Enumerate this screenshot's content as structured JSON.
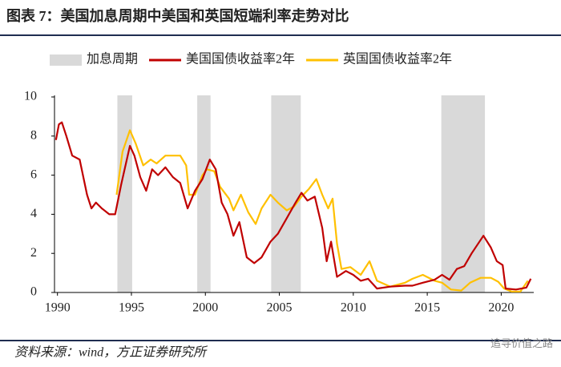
{
  "chart_data": {
    "type": "line",
    "title": "图表 7：美国加息周期中美国和英国短端利率走势对比",
    "source": "资料来源：wind，方正证券研究所",
    "watermark": "追寻价值之路",
    "shaded_name": "加息周期",
    "shaded_color": "#d9d9d9",
    "shaded": [
      [
        1994.05,
        1995.05
      ],
      [
        1999.45,
        2000.35
      ],
      [
        2004.45,
        2006.45
      ],
      [
        2015.95,
        2018.9
      ]
    ],
    "xlim": [
      1989.8,
      2022.2
    ],
    "xticks": [
      1990,
      1995,
      2000,
      2005,
      2010,
      2015,
      2020
    ],
    "ylim": [
      0,
      10
    ],
    "yticks": [
      0,
      2,
      4,
      6,
      8,
      10
    ],
    "series": [
      {
        "name": "美国国债收益率2年",
        "color": "#c00000",
        "x": [
          1989.9,
          1990.1,
          1990.3,
          1990.6,
          1991,
          1991.5,
          1992,
          1992.3,
          1992.6,
          1993,
          1993.5,
          1993.9,
          1994.3,
          1994.9,
          1995.2,
          1995.6,
          1996,
          1996.4,
          1996.8,
          1997.3,
          1997.8,
          1998.3,
          1998.8,
          1999.3,
          1999.8,
          2000.3,
          2000.7,
          2001.1,
          2001.5,
          2001.9,
          2002.3,
          2002.8,
          2003.3,
          2003.8,
          2004.4,
          2004.9,
          2005.5,
          2006.1,
          2006.5,
          2006.9,
          2007.4,
          2007.9,
          2008.2,
          2008.5,
          2008.9,
          2009.5,
          2010,
          2010.5,
          2011,
          2011.6,
          2012.5,
          2013.5,
          2014,
          2014.7,
          2015.5,
          2016,
          2016.5,
          2017,
          2017.5,
          2018,
          2018.8,
          2019.3,
          2019.7,
          2020.1,
          2020.3,
          2021,
          2021.7,
          2022
        ],
        "values": [
          7.8,
          8.6,
          8.7,
          8.0,
          7.0,
          6.8,
          5.0,
          4.3,
          4.6,
          4.3,
          4.0,
          4.0,
          5.5,
          7.5,
          7.0,
          5.9,
          5.2,
          6.3,
          6.0,
          6.4,
          5.9,
          5.6,
          4.3,
          5.2,
          5.8,
          6.8,
          6.3,
          4.6,
          4.0,
          2.9,
          3.6,
          1.8,
          1.5,
          1.8,
          2.6,
          3.0,
          3.8,
          4.6,
          5.1,
          4.7,
          4.9,
          3.3,
          1.6,
          2.6,
          0.8,
          1.1,
          0.9,
          0.6,
          0.7,
          0.2,
          0.3,
          0.35,
          0.35,
          0.5,
          0.65,
          0.9,
          0.65,
          1.2,
          1.35,
          2.0,
          2.9,
          2.3,
          1.6,
          1.4,
          0.2,
          0.15,
          0.25,
          0.7
        ]
      },
      {
        "name": "英国国债收益率2年",
        "color": "#ffc000",
        "x": [
          1994.0,
          1994.4,
          1994.9,
          1995.3,
          1995.8,
          1996.3,
          1996.7,
          1997.3,
          1997.8,
          1998.3,
          1998.7,
          1998.9,
          1999.3,
          1999.8,
          2000.1,
          2000.6,
          2001,
          2001.6,
          2001.9,
          2002.4,
          2002.9,
          2003.4,
          2003.8,
          2004.4,
          2004.9,
          2005.5,
          2006,
          2006.5,
          2007,
          2007.5,
          2007.9,
          2008.3,
          2008.6,
          2008.9,
          2009.2,
          2009.8,
          2010.5,
          2011.1,
          2011.6,
          2012.5,
          2013.5,
          2014,
          2014.7,
          2015.5,
          2016,
          2016.6,
          2017.3,
          2017.9,
          2018.6,
          2019.3,
          2019.8,
          2020.2,
          2020.7,
          2021.3,
          2021.8
        ],
        "values": [
          5.0,
          7.2,
          8.3,
          7.6,
          6.5,
          6.8,
          6.6,
          7.0,
          7.0,
          7.0,
          6.5,
          5.0,
          5.0,
          6.0,
          6.3,
          6.2,
          5.4,
          4.8,
          4.2,
          5.0,
          4.1,
          3.5,
          4.3,
          5.0,
          4.6,
          4.2,
          4.4,
          4.9,
          5.3,
          5.8,
          5.0,
          4.3,
          4.8,
          2.5,
          1.2,
          1.3,
          0.9,
          1.6,
          0.6,
          0.3,
          0.5,
          0.7,
          0.9,
          0.6,
          0.5,
          0.15,
          0.1,
          0.5,
          0.75,
          0.75,
          0.55,
          0.2,
          0.05,
          0.05,
          0.6
        ]
      }
    ]
  }
}
